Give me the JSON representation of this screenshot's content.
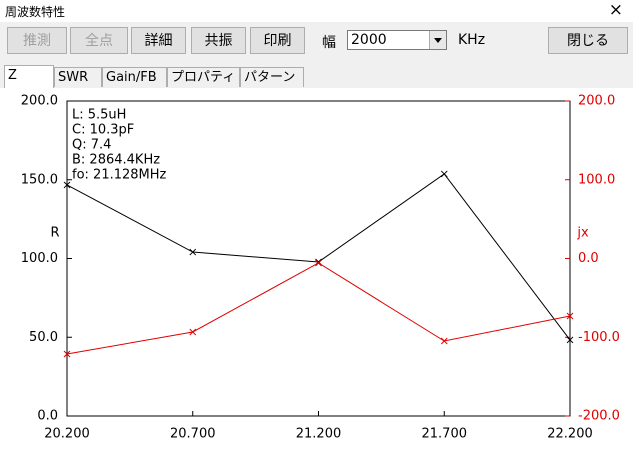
{
  "window": {
    "title": "周波数特性",
    "close": "×"
  },
  "toolbar": {
    "buttons": [
      "推測",
      "全点",
      "詳細",
      "共振",
      "印刷"
    ],
    "width_label": "幅",
    "width_value": "2000",
    "unit": "KHz",
    "close_button": "閉じる"
  },
  "tabs": [
    "Z",
    "SWR",
    "Gain/FB",
    "プロパティ",
    "パターン"
  ],
  "chart_data": {
    "type": "line",
    "annotations": [
      "L: 5.5uH",
      "C: 10.3pF",
      "Q: 7.4",
      "B: 2864.4KHz",
      "fo: 21.128MHz"
    ],
    "y_label": "R",
    "y2_label": "jx",
    "x": [
      20.2,
      20.7,
      21.2,
      21.7,
      22.2
    ],
    "xlim": [
      20.2,
      22.2
    ],
    "xticks": [
      {
        "value": 20.2,
        "label": "20.200"
      },
      {
        "value": 20.7,
        "label": "20.700"
      },
      {
        "value": 21.2,
        "label": "21.200"
      },
      {
        "value": 21.7,
        "label": "21.700"
      },
      {
        "value": 22.2,
        "label": "22.200"
      }
    ],
    "ylim": [
      0,
      200
    ],
    "yticks": [
      {
        "value": 0,
        "label": "0.0"
      },
      {
        "value": 50,
        "label": "50.0"
      },
      {
        "value": 100,
        "label": "100.0"
      },
      {
        "value": 150,
        "label": "150.0"
      },
      {
        "value": 200,
        "label": "200.0"
      }
    ],
    "y2lim": [
      -200,
      200
    ],
    "y2ticks": [
      {
        "value": -200,
        "label": "-200.0"
      },
      {
        "value": -100,
        "label": "-100.0"
      },
      {
        "value": 0,
        "label": "0.0"
      },
      {
        "value": 100,
        "label": "100.0"
      },
      {
        "value": 200,
        "label": "200.0"
      }
    ],
    "y2color": "#e00000",
    "grid": false,
    "series": [
      {
        "name": "R",
        "color": "#000000",
        "values": [
          146.7,
          104.1,
          97.8,
          153.7,
          48.3
        ]
      },
      {
        "name": "jx",
        "color": "#e00000",
        "axis": "y2",
        "values": [
          -121.3,
          -93.3,
          -5.7,
          -104.8,
          -73.0
        ]
      }
    ]
  }
}
